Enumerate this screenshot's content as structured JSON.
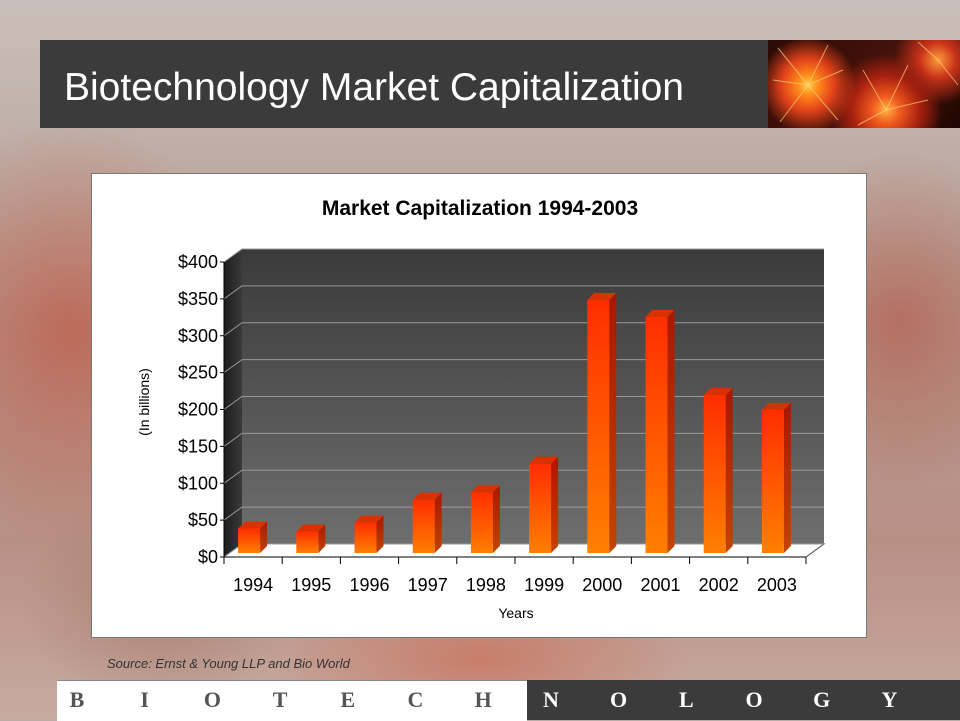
{
  "slide": {
    "title": "Biotechnology Market Capitalization",
    "source": "Source: Ernst & Young LLP and Bio World",
    "footer_letters": [
      "B",
      "I",
      "O",
      "T",
      "E",
      "C",
      "H",
      "N",
      "O",
      "L",
      "O",
      "G",
      "Y"
    ]
  },
  "colors": {
    "title_bar": "#3b3b3b",
    "bar_top": "#ff3b00",
    "bar_bottom": "#ff7a00",
    "plot_back": "#5a5a5a"
  },
  "chart_data": {
    "type": "bar",
    "title": "Market Capitalization 1994-2003",
    "xlabel": "Years",
    "ylabel": "(In billions)",
    "categories": [
      "1994",
      "1995",
      "1996",
      "1997",
      "1998",
      "1999",
      "2000",
      "2001",
      "2002",
      "2003"
    ],
    "values": [
      44,
      40,
      52,
      83,
      93,
      132,
      354,
      331,
      225,
      205
    ],
    "ylim": [
      0,
      400
    ],
    "yticks": [
      0,
      50,
      100,
      150,
      200,
      250,
      300,
      350,
      400
    ],
    "ytick_labels": [
      "$0",
      "$50",
      "$100",
      "$150",
      "$200",
      "$250",
      "$300",
      "$350",
      "$400"
    ],
    "grid": true,
    "style": "3d"
  }
}
